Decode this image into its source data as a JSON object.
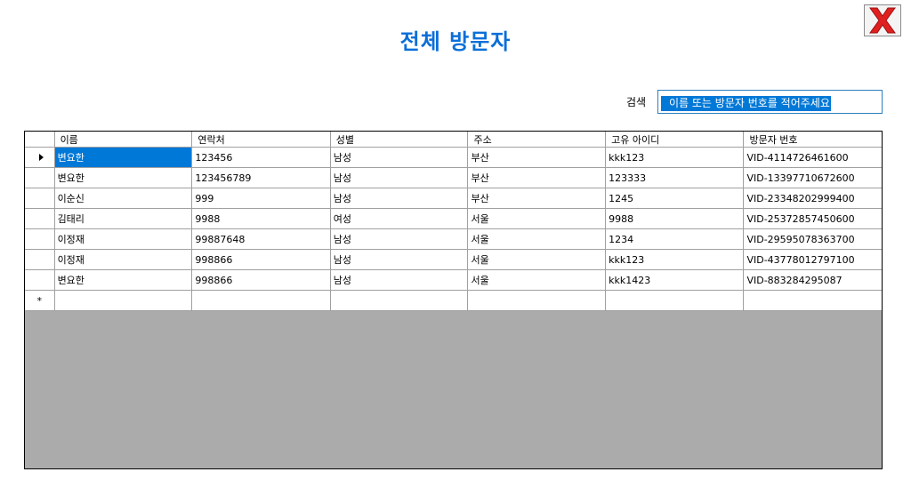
{
  "title": "전체 방문자",
  "close": {
    "icon": "close-x-icon",
    "color": "#e02020"
  },
  "search": {
    "label": "검색",
    "value": "이름 또는 방문자 번호를 적어주세요"
  },
  "grid": {
    "columns": [
      "이름",
      "연락처",
      "성별",
      "주소",
      "고유 아이디",
      "방문자 번호"
    ],
    "rows": [
      [
        "변요한",
        "123456",
        "남성",
        "부산",
        "kkk123",
        "VID-4114726461600"
      ],
      [
        "변요한",
        "123456789",
        "남성",
        "부산",
        "123333",
        "VID-13397710672600"
      ],
      [
        "이순신",
        "999",
        "남성",
        "부산",
        "1245",
        "VID-23348202999400"
      ],
      [
        "김태리",
        "9988",
        "여성",
        "서울",
        "9988",
        "VID-25372857450600"
      ],
      [
        "이정재",
        "99887648",
        "남성",
        "서울",
        "1234",
        "VID-29595078363700"
      ],
      [
        "이정재",
        "998866",
        "남성",
        "서울",
        "kkk123",
        "VID-43778012797100"
      ],
      [
        "변요한",
        "998866",
        "남성",
        "서울",
        "kkk1423",
        "VID-883284295087"
      ]
    ],
    "new_row_marker": "*",
    "background_color": "#ababab",
    "selection_color": "#0078d7"
  }
}
